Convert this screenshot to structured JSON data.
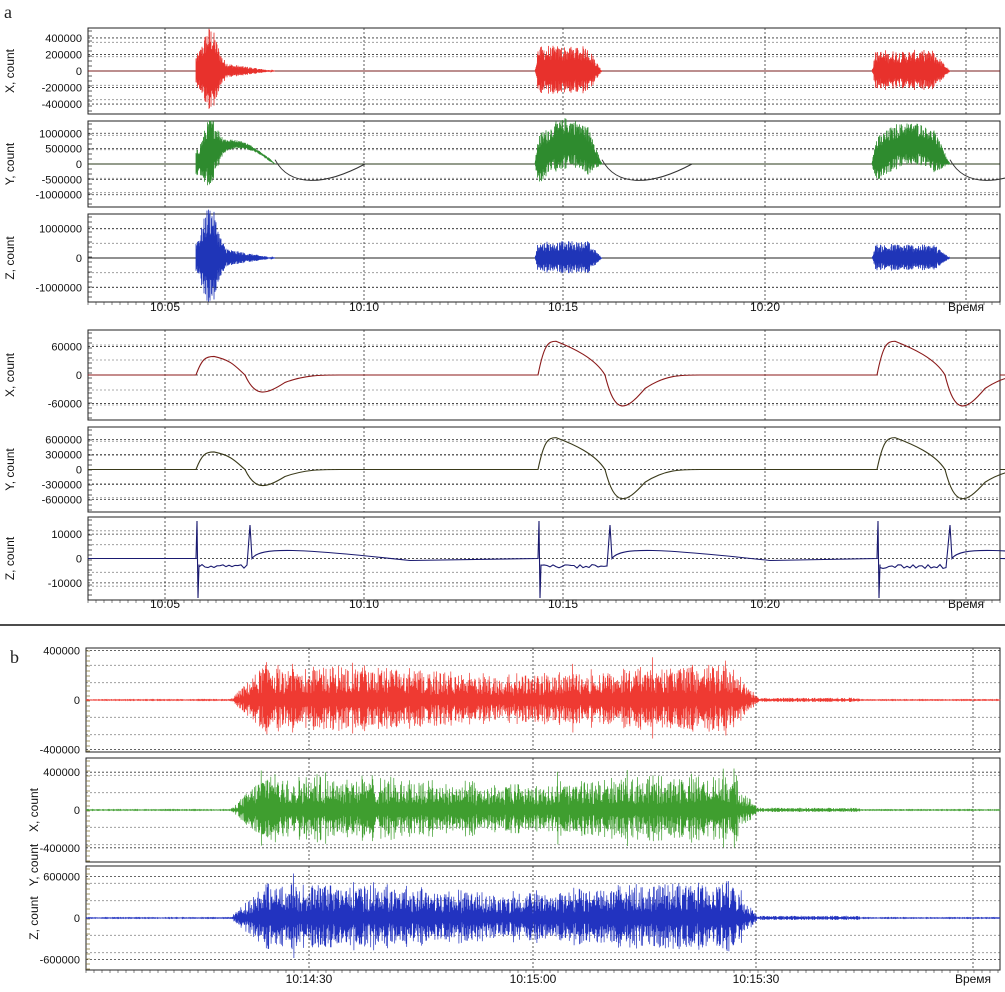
{
  "panel_labels": [
    "a",
    "b"
  ],
  "chart_data": [
    {
      "type": "line",
      "name": "a-top",
      "x_ticks": [
        "10:05",
        "10:10",
        "10:15",
        "10:20",
        "Время"
      ],
      "x_units": "minutes",
      "xlim": [
        10.02,
        10.34
      ],
      "subplots": [
        {
          "ylabel": "X, count",
          "color": "#e8312c",
          "ylim": [
            -520000,
            520000
          ],
          "yticks": [
            400000,
            200000,
            0,
            -200000,
            -400000
          ],
          "yticks_text": [
            "400000",
            "200000",
            "0",
            "-200000",
            "-400000"
          ],
          "bursts": [
            {
              "start": "10:05:50",
              "end": "10:07:10",
              "amplitude": 420000
            },
            {
              "start": "10:14:25",
              "end": "10:15:40",
              "amplitude": 320000
            },
            {
              "start": "10:22:50",
              "end": "10:24:20",
              "amplitude": 260000
            }
          ]
        },
        {
          "ylabel": "Y, count",
          "color": "#2e8b2e",
          "ylim": [
            -1400000,
            1400000
          ],
          "yticks": [
            1000000,
            500000,
            0,
            -500000,
            -1000000
          ],
          "yticks_text": [
            "1000000",
            "500000",
            "0",
            "-500000",
            "-1000000"
          ],
          "bursts": [
            {
              "start": "10:05:50",
              "end": "10:07:00",
              "amplitude": 900000
            },
            {
              "start": "10:14:25",
              "end": "10:15:40",
              "amplitude": 900000
            },
            {
              "start": "10:22:50",
              "end": "10:24:20",
              "amplitude": 800000
            }
          ]
        },
        {
          "ylabel": "Z, count",
          "color": "#1f35b8",
          "ylim": [
            -1500000,
            1500000
          ],
          "yticks": [
            1000000,
            0,
            -1000000
          ],
          "yticks_text": [
            "1000000",
            "0",
            "-1000000"
          ],
          "bursts": [
            {
              "start": "10:05:55",
              "end": "10:07:10",
              "amplitude": 1400000
            },
            {
              "start": "10:14:25",
              "end": "10:15:35",
              "amplitude": 600000
            },
            {
              "start": "10:22:50",
              "end": "10:24:20",
              "amplitude": 500000
            }
          ]
        }
      ]
    },
    {
      "type": "line",
      "name": "a-bottom",
      "x_ticks": [
        "10:05",
        "10:10",
        "10:15",
        "10:20",
        "Время"
      ],
      "subplots": [
        {
          "ylabel": "X, count",
          "color": "#8b1a1a",
          "ylim": [
            -95000,
            95000
          ],
          "yticks": [
            60000,
            0,
            -60000
          ],
          "yticks_text": [
            "60000",
            "0",
            "-60000"
          ]
        },
        {
          "ylabel": "Y, count",
          "color": "#3a3a1a",
          "ylim": [
            -850000,
            850000
          ],
          "yticks": [
            600000,
            300000,
            0,
            -300000,
            -600000
          ],
          "yticks_text": [
            "600000",
            "300000",
            "0",
            "-300000",
            "-600000"
          ]
        },
        {
          "ylabel": "Z, count",
          "color": "#1a1a70",
          "ylim": [
            -17000,
            17000
          ],
          "yticks": [
            10000,
            0,
            -10000
          ],
          "yticks_text": [
            "10000",
            "0",
            "-10000"
          ]
        }
      ]
    },
    {
      "type": "line",
      "name": "b",
      "x_ticks": [
        "10:14:30",
        "10:15:00",
        "10:15:30",
        "Время"
      ],
      "subplots": [
        {
          "ylabel": "",
          "color": "#ef3a32",
          "ylim": [
            -420000,
            420000
          ],
          "yticks": [
            400000,
            0,
            -400000
          ],
          "yticks_text": [
            "400000",
            "0",
            "-400000"
          ]
        },
        {
          "ylabel": "X, count",
          "color": "#3f9e2f",
          "ylim": [
            -550000,
            550000
          ],
          "yticks": [
            400000,
            0,
            -400000
          ],
          "yticks_text": [
            "400000",
            "0",
            "-400000"
          ]
        },
        {
          "ylabel": "Z, count",
          "color": "#2233c0",
          "ylim": [
            -750000,
            750000
          ],
          "yticks": [
            600000,
            0,
            -600000
          ],
          "yticks_text": [
            "600000",
            "0",
            "-600000"
          ]
        }
      ],
      "extra_ylabels": [
        "Y, count"
      ]
    }
  ]
}
